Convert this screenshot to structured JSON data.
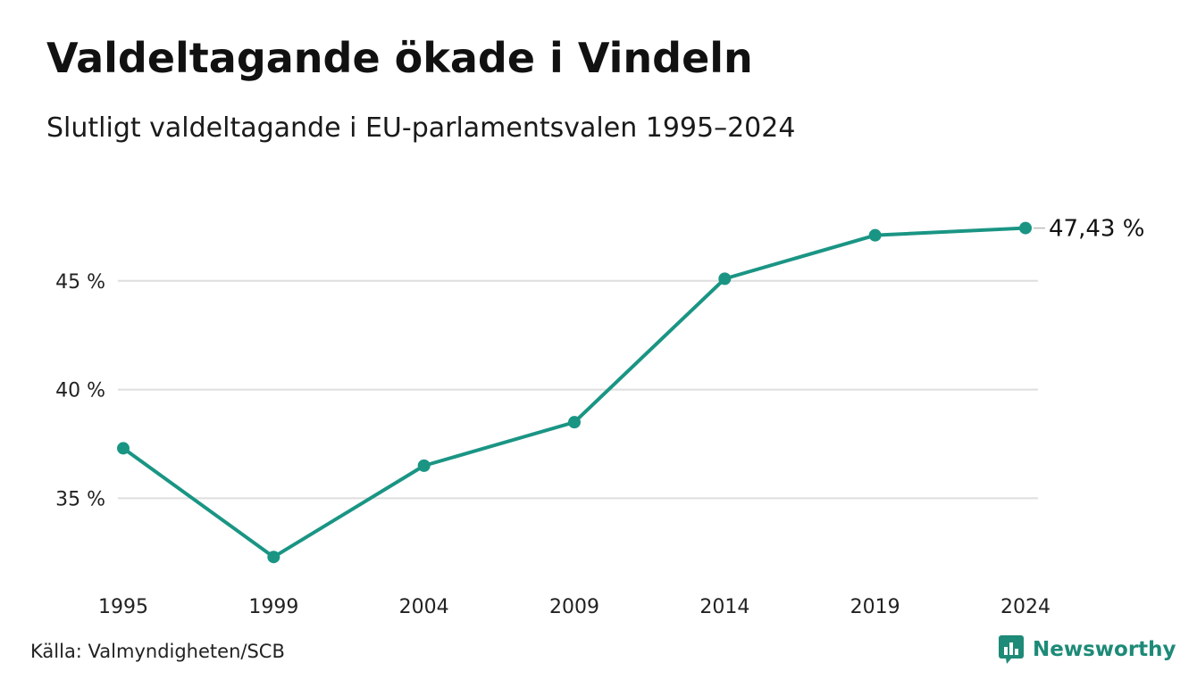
{
  "title": "Valdeltagande ökade i Vindeln",
  "subtitle": "Slutligt valdeltagande i EU-parlamentsvalen 1995–2024",
  "source": "Källa: Valmyndigheten/SCB",
  "brand": {
    "name": "Newsworthy",
    "icon": "newsworthy-logo-icon",
    "color": "#1e8a78"
  },
  "colors": {
    "line": "#1a9584",
    "grid": "#dedede",
    "text": "#111111"
  },
  "chart_data": {
    "type": "line",
    "title": "Valdeltagande ökade i Vindeln",
    "subtitle": "Slutligt valdeltagande i EU-parlamentsvalen 1995–2024",
    "xlabel": "",
    "ylabel": "",
    "x": [
      "1995",
      "1999",
      "2004",
      "2009",
      "2014",
      "2019",
      "2024"
    ],
    "series": [
      {
        "values": [
          37.3,
          32.3,
          36.5,
          38.5,
          45.1,
          47.1,
          47.43
        ]
      }
    ],
    "yticks": [
      35,
      40,
      45
    ],
    "ytick_labels": [
      "35 %",
      "40 %",
      "45 %"
    ],
    "ylim": [
      31.2,
      50
    ],
    "grid": true,
    "end_label": "47,43 %"
  }
}
